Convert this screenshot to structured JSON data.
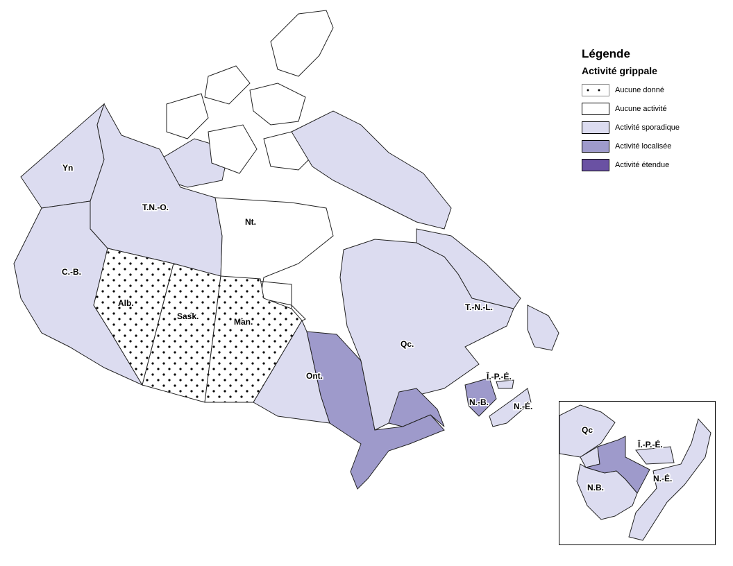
{
  "legend": {
    "title": "Légende",
    "subtitle": "Activité grippale",
    "items": [
      {
        "label": "Aucune donné",
        "color": "#ffffff",
        "pattern": "dots"
      },
      {
        "label": "Aucune activité",
        "color": "#ffffff"
      },
      {
        "label": "Activité sporadique",
        "color": "#dcdcf0"
      },
      {
        "label": "Activité localisée",
        "color": "#9e9acb"
      },
      {
        "label": "Activité étendue",
        "color": "#6a51a3"
      }
    ]
  },
  "regions": {
    "yn": {
      "label": "Yn",
      "level": "Activité sporadique"
    },
    "tno": {
      "label": "T.N.-O.",
      "level": "Activité sporadique"
    },
    "nt": {
      "label": "Nt.",
      "level": "Aucune activité"
    },
    "cb": {
      "label": "C.-B.",
      "level": "Activité sporadique"
    },
    "alb": {
      "label": "Alb.",
      "level": "Aucune donné"
    },
    "sask": {
      "label": "Sask.",
      "level": "Aucune donné"
    },
    "man": {
      "label": "Man.",
      "level": "Aucune donné"
    },
    "ont": {
      "label": "Ont.",
      "level": "Activité sporadique / Activité localisée"
    },
    "qc": {
      "label": "Qc.",
      "level": "Activité sporadique / Activité localisée"
    },
    "tnl": {
      "label": "T.-N.-L.",
      "level": "Activité sporadique"
    },
    "ipe": {
      "label": "Î.-P.-É.",
      "level": "Activité sporadique"
    },
    "nb": {
      "label": "N.-B.",
      "level": "Activité sporadique / Activité localisée"
    },
    "ne": {
      "label": "N.-É.",
      "level": "Activité sporadique"
    }
  },
  "inset": {
    "qc": "Qc",
    "ipe": "Î.-P.-É.",
    "nb": "N.B.",
    "ne": "N.-É."
  }
}
